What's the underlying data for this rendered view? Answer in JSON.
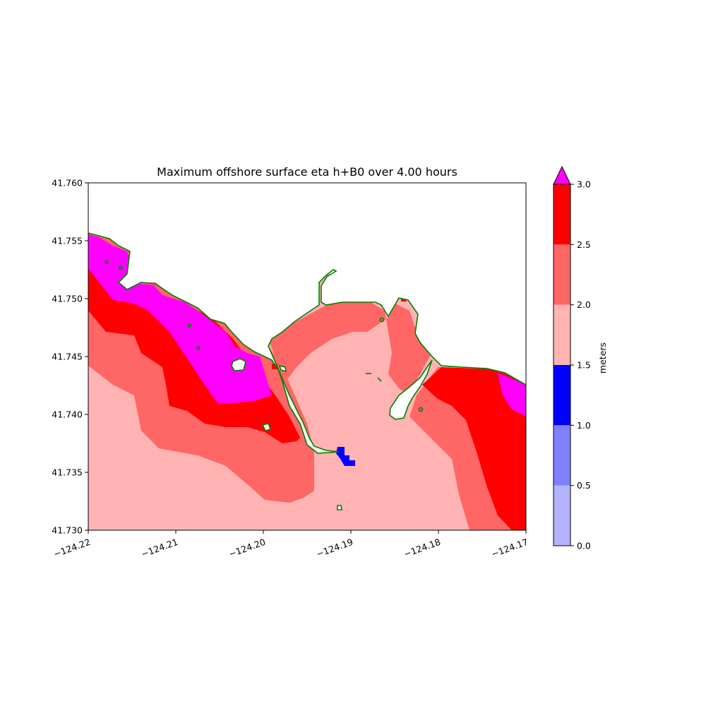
{
  "title": "Maximum offshore surface eta h+B0 over 4.00 hours",
  "x_axis": {
    "range": [
      -124.22,
      -124.17
    ],
    "ticks": [
      -124.22,
      -124.21,
      -124.2,
      -124.19,
      -124.18,
      -124.17
    ],
    "tick_labels": [
      "−124.22",
      "−124.21",
      "−124.20",
      "−124.19",
      "−124.18",
      "−124.17"
    ],
    "label_rotation": "rotated ~20 degrees"
  },
  "y_axis": {
    "range": [
      41.73,
      41.76
    ],
    "ticks": [
      41.73,
      41.735,
      41.74,
      41.745,
      41.75,
      41.755,
      41.76
    ],
    "tick_labels": [
      "41.730",
      "41.735",
      "41.740",
      "41.745",
      "41.750",
      "41.755",
      "41.760"
    ]
  },
  "colorbar": {
    "label": "meters",
    "levels": [
      0.0,
      0.5,
      1.0,
      1.5,
      2.0,
      2.5,
      3.0
    ],
    "tick_labels": [
      "0.0",
      "0.5",
      "1.0",
      "1.5",
      "2.0",
      "2.5",
      "3.0"
    ],
    "colors": [
      "#b3b3ff",
      "#8080ff",
      "#0000ff",
      "#ffb3b3",
      "#ff6666",
      "#ff0000"
    ],
    "extend_color": "#ff00ff",
    "extend": "max"
  },
  "map": {
    "land_color": "#ffffff",
    "shoreline_color": "#008000",
    "dry_cell_color": "#ffffff"
  }
}
